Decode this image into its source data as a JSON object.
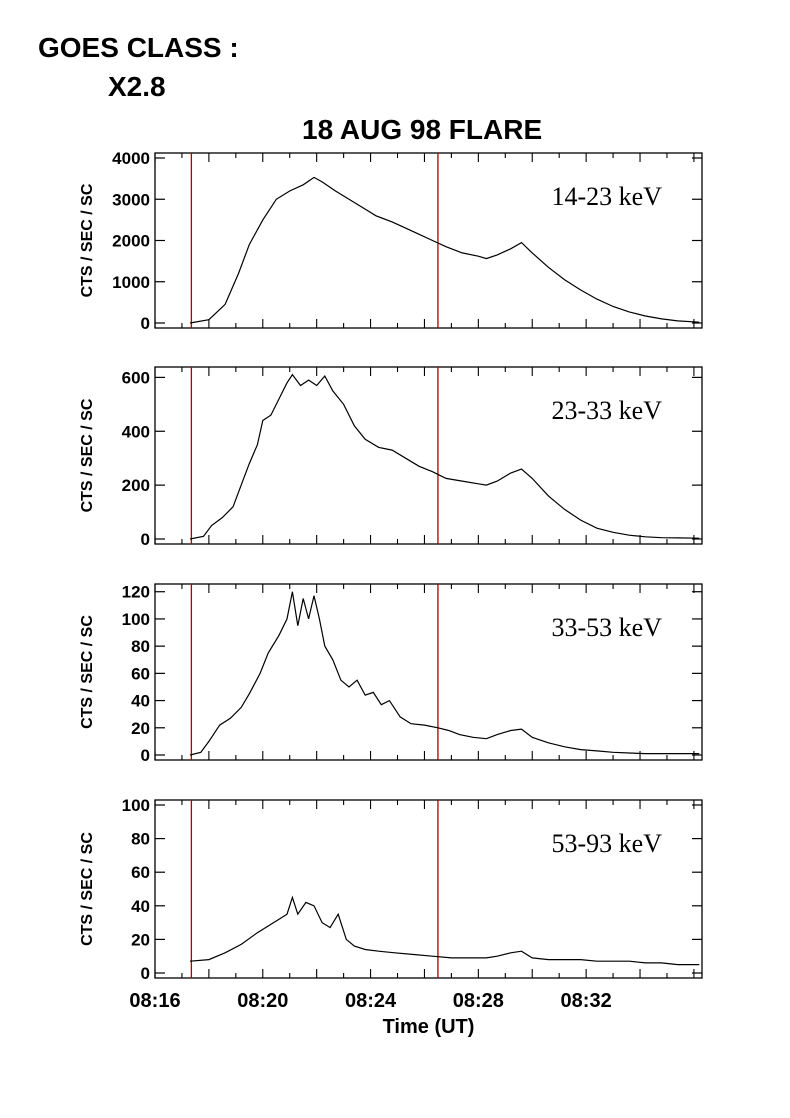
{
  "header": {
    "goes_label": "GOES CLASS :",
    "goes_value": "X2.8",
    "title": "18 AUG 98 FLARE"
  },
  "colors": {
    "line": "#000000",
    "marker": "#b00000",
    "axis": "#000000"
  },
  "chart_data": [
    {
      "type": "line",
      "label": "14-23 keV",
      "ylabel": "CTS / SEC / SC",
      "ylim": [
        0,
        4000
      ],
      "yticks": [
        0,
        1000,
        2000,
        3000,
        4000
      ],
      "xlim": [
        0,
        20.3
      ],
      "series": [
        {
          "values": [
            [
              1.3,
              0
            ],
            [
              2,
              80
            ],
            [
              2.6,
              450
            ],
            [
              3.1,
              1200
            ],
            [
              3.5,
              1900
            ],
            [
              4,
              2500
            ],
            [
              4.5,
              3000
            ],
            [
              5,
              3200
            ],
            [
              5.5,
              3350
            ],
            [
              5.9,
              3530
            ],
            [
              6.2,
              3420
            ],
            [
              6.7,
              3200
            ],
            [
              7.2,
              3000
            ],
            [
              7.7,
              2800
            ],
            [
              8.2,
              2600
            ],
            [
              8.8,
              2450
            ],
            [
              9.3,
              2300
            ],
            [
              9.8,
              2150
            ],
            [
              10.3,
              2000
            ],
            [
              10.8,
              1850
            ],
            [
              11.4,
              1700
            ],
            [
              12,
              1620
            ],
            [
              12.3,
              1560
            ],
            [
              12.7,
              1650
            ],
            [
              13.2,
              1800
            ],
            [
              13.6,
              1950
            ],
            [
              14,
              1700
            ],
            [
              14.6,
              1350
            ],
            [
              15.2,
              1050
            ],
            [
              15.8,
              800
            ],
            [
              16.4,
              580
            ],
            [
              17,
              400
            ],
            [
              17.6,
              270
            ],
            [
              18.2,
              170
            ],
            [
              18.8,
              100
            ],
            [
              19.4,
              50
            ],
            [
              20.2,
              20
            ]
          ]
        }
      ]
    },
    {
      "type": "line",
      "label": "23-33 keV",
      "ylabel": "CTS / SEC / SC",
      "ylim": [
        0,
        620
      ],
      "yticks": [
        0,
        200,
        400,
        600
      ],
      "xlim": [
        0,
        20.3
      ],
      "series": [
        {
          "values": [
            [
              1.3,
              0
            ],
            [
              1.8,
              10
            ],
            [
              2.1,
              50
            ],
            [
              2.5,
              80
            ],
            [
              2.9,
              120
            ],
            [
              3.2,
              200
            ],
            [
              3.5,
              280
            ],
            [
              3.8,
              350
            ],
            [
              4,
              440
            ],
            [
              4.3,
              460
            ],
            [
              4.6,
              520
            ],
            [
              4.9,
              580
            ],
            [
              5.1,
              610
            ],
            [
              5.4,
              570
            ],
            [
              5.7,
              590
            ],
            [
              6,
              570
            ],
            [
              6.3,
              605
            ],
            [
              6.6,
              550
            ],
            [
              7,
              500
            ],
            [
              7.4,
              420
            ],
            [
              7.8,
              370
            ],
            [
              8.3,
              340
            ],
            [
              8.8,
              330
            ],
            [
              9.3,
              300
            ],
            [
              9.8,
              270
            ],
            [
              10.3,
              250
            ],
            [
              10.8,
              225
            ],
            [
              11.4,
              215
            ],
            [
              12,
              205
            ],
            [
              12.3,
              200
            ],
            [
              12.7,
              215
            ],
            [
              13.2,
              245
            ],
            [
              13.6,
              260
            ],
            [
              14,
              225
            ],
            [
              14.6,
              160
            ],
            [
              15.2,
              110
            ],
            [
              15.8,
              70
            ],
            [
              16.4,
              40
            ],
            [
              17,
              25
            ],
            [
              17.6,
              14
            ],
            [
              18.2,
              8
            ],
            [
              18.8,
              5
            ],
            [
              19.4,
              4
            ],
            [
              20.2,
              3
            ]
          ]
        }
      ]
    },
    {
      "type": "line",
      "label": "33-53 keV",
      "ylabel": "CTS / SEC / SC",
      "ylim": [
        0,
        122
      ],
      "yticks": [
        0,
        20,
        40,
        60,
        80,
        100,
        120
      ],
      "xlim": [
        0,
        20.3
      ],
      "series": [
        {
          "values": [
            [
              1.3,
              0
            ],
            [
              1.7,
              2
            ],
            [
              2,
              10
            ],
            [
              2.4,
              22
            ],
            [
              2.8,
              27
            ],
            [
              3.2,
              35
            ],
            [
              3.5,
              45
            ],
            [
              3.9,
              60
            ],
            [
              4.2,
              75
            ],
            [
              4.6,
              88
            ],
            [
              4.9,
              100
            ],
            [
              5.1,
              120
            ],
            [
              5.3,
              95
            ],
            [
              5.5,
              115
            ],
            [
              5.7,
              100
            ],
            [
              5.9,
              117
            ],
            [
              6.1,
              100
            ],
            [
              6.3,
              80
            ],
            [
              6.6,
              70
            ],
            [
              6.9,
              55
            ],
            [
              7.2,
              50
            ],
            [
              7.5,
              55
            ],
            [
              7.8,
              44
            ],
            [
              8.1,
              46
            ],
            [
              8.4,
              37
            ],
            [
              8.7,
              40
            ],
            [
              9.1,
              28
            ],
            [
              9.5,
              23
            ],
            [
              10,
              22
            ],
            [
              10.5,
              20
            ],
            [
              10.9,
              18
            ],
            [
              11.3,
              15
            ],
            [
              11.8,
              13
            ],
            [
              12.3,
              12
            ],
            [
              12.7,
              15
            ],
            [
              13.2,
              18
            ],
            [
              13.6,
              19
            ],
            [
              14,
              13
            ],
            [
              14.6,
              9
            ],
            [
              15.2,
              6
            ],
            [
              15.8,
              4
            ],
            [
              16.4,
              3
            ],
            [
              17,
              2
            ],
            [
              17.6,
              1.5
            ],
            [
              18.2,
              1
            ],
            [
              18.8,
              1
            ],
            [
              19.4,
              1
            ],
            [
              20.2,
              1
            ]
          ]
        }
      ]
    },
    {
      "type": "line",
      "label": "53-93 keV",
      "ylabel": "CTS / SEC / SC",
      "ylim": [
        0,
        100
      ],
      "yticks": [
        0,
        20,
        40,
        60,
        80,
        100
      ],
      "xlim": [
        0,
        20.3
      ],
      "series": [
        {
          "values": [
            [
              1.3,
              7
            ],
            [
              2,
              8
            ],
            [
              2.6,
              12
            ],
            [
              3.2,
              17
            ],
            [
              3.8,
              24
            ],
            [
              4.4,
              30
            ],
            [
              4.9,
              35
            ],
            [
              5.1,
              45
            ],
            [
              5.3,
              35
            ],
            [
              5.6,
              42
            ],
            [
              5.9,
              40
            ],
            [
              6.2,
              30
            ],
            [
              6.5,
              27
            ],
            [
              6.8,
              35
            ],
            [
              7.1,
              20
            ],
            [
              7.4,
              16
            ],
            [
              7.8,
              14
            ],
            [
              8.3,
              13
            ],
            [
              8.9,
              12
            ],
            [
              9.6,
              11
            ],
            [
              10.3,
              10
            ],
            [
              11,
              9
            ],
            [
              11.6,
              9
            ],
            [
              12.3,
              9
            ],
            [
              12.7,
              10
            ],
            [
              13.2,
              12
            ],
            [
              13.6,
              13
            ],
            [
              14,
              9
            ],
            [
              14.6,
              8
            ],
            [
              15.2,
              8
            ],
            [
              15.8,
              8
            ],
            [
              16.4,
              7
            ],
            [
              17,
              7
            ],
            [
              17.6,
              7
            ],
            [
              18.2,
              6
            ],
            [
              18.8,
              6
            ],
            [
              19.4,
              5
            ],
            [
              20.2,
              5
            ]
          ]
        }
      ]
    }
  ],
  "xaxis": {
    "label": "Time (UT)",
    "ticks": [
      {
        "x": 0,
        "label": "08:16"
      },
      {
        "x": 4,
        "label": "08:20"
      },
      {
        "x": 8,
        "label": "08:24"
      },
      {
        "x": 12,
        "label": "08:28"
      },
      {
        "x": 16,
        "label": "08:32"
      }
    ]
  },
  "markers": {
    "x": [
      1.35,
      10.5
    ]
  }
}
